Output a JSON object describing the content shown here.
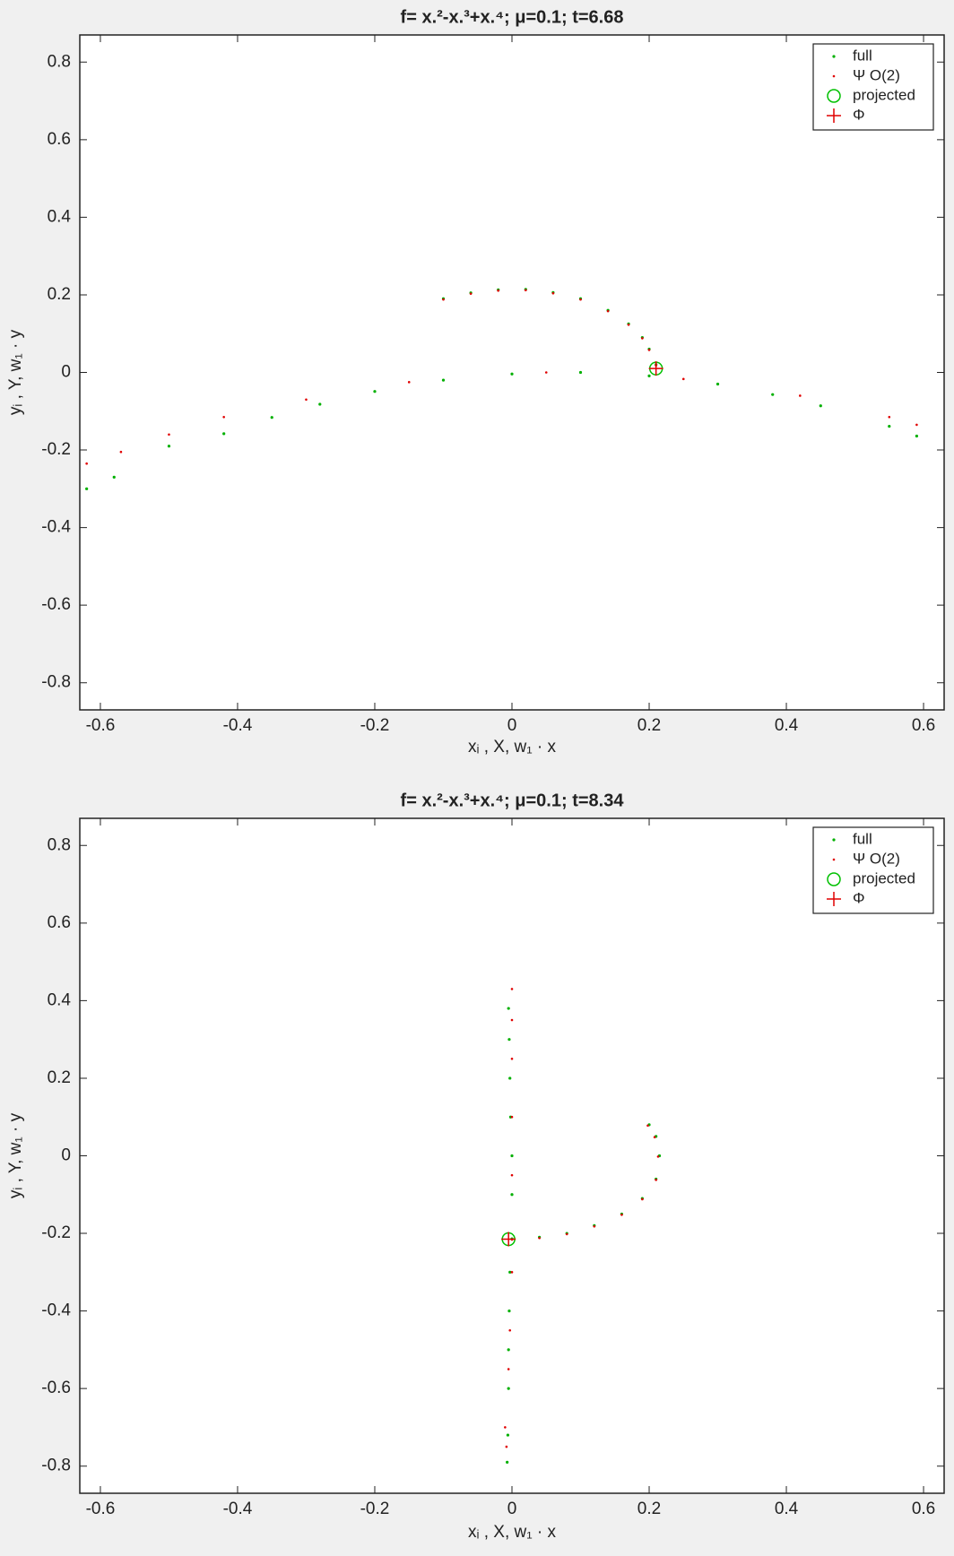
{
  "chart_data": [
    {
      "type": "scatter",
      "title": "f= x.²-x.³+x.⁴;  μ=0.1; t=6.68",
      "xlabel": "xᵢ , X, w₁ · x",
      "ylabel": "yᵢ , Y, w₁ · y",
      "xlim": [
        -0.63,
        0.63
      ],
      "xticks": [
        -0.6,
        -0.4,
        -0.2,
        0,
        0.2,
        0.4,
        0.6
      ],
      "ylim": [
        -0.87,
        0.87
      ],
      "yticks": [
        -0.8,
        -0.6,
        -0.4,
        -0.2,
        0,
        0.2,
        0.4,
        0.6,
        0.8
      ],
      "legend": "upper right",
      "series": [
        {
          "name": "full",
          "color": "#00b000",
          "marker": "point",
          "x": [
            -0.1,
            -0.06,
            -0.02,
            0.02,
            0.06,
            0.1,
            0.14,
            0.17,
            0.19,
            0.2,
            0.21,
            -0.62,
            -0.58,
            -0.5,
            -0.42,
            -0.35,
            -0.28,
            -0.2,
            -0.1,
            0,
            0.1,
            0.2,
            0.3,
            0.38,
            0.45,
            0.55,
            0.59
          ],
          "values": [
            0.19,
            0.205,
            0.213,
            0.214,
            0.206,
            0.19,
            0.16,
            0.125,
            0.09,
            0.06,
            0.02,
            -0.3,
            -0.27,
            -0.19,
            -0.158,
            -0.116,
            -0.082,
            -0.049,
            -0.02,
            -0.004,
            0,
            -0.009,
            -0.03,
            -0.057,
            -0.086,
            -0.139,
            -0.164
          ]
        },
        {
          "name": "Ψ O(2)",
          "color": "#e00000",
          "marker": "dot",
          "x": [
            -0.1,
            -0.06,
            -0.02,
            0.02,
            0.06,
            0.1,
            0.14,
            0.17,
            0.19,
            0.2,
            0.21,
            -0.62,
            -0.57,
            -0.5,
            -0.42,
            -0.3,
            -0.15,
            0.05,
            0.25,
            0.42,
            0.55,
            0.59
          ],
          "values": [
            0.188,
            0.203,
            0.211,
            0.212,
            0.204,
            0.188,
            0.158,
            0.123,
            0.088,
            0.058,
            0.018,
            -0.235,
            -0.205,
            -0.16,
            -0.115,
            -0.07,
            -0.025,
            0,
            -0.017,
            -0.06,
            -0.115,
            -0.135
          ]
        },
        {
          "name": "projected",
          "color": "#00c000",
          "marker": "circle",
          "x": [
            0.21
          ],
          "values": [
            0.01
          ]
        },
        {
          "name": "Φ",
          "color": "#e00000",
          "marker": "plus",
          "x": [
            0.21
          ],
          "values": [
            0.01
          ]
        }
      ]
    },
    {
      "type": "scatter",
      "title": "f= x.²-x.³+x.⁴;  μ=0.1; t=8.34",
      "xlabel": "xᵢ , X, w₁ · x",
      "ylabel": "yᵢ , Y, w₁ · y",
      "xlim": [
        -0.63,
        0.63
      ],
      "xticks": [
        -0.6,
        -0.4,
        -0.2,
        0,
        0.2,
        0.4,
        0.6
      ],
      "ylim": [
        -0.87,
        0.87
      ],
      "yticks": [
        -0.8,
        -0.6,
        -0.4,
        -0.2,
        0,
        0.2,
        0.4,
        0.6,
        0.8
      ],
      "legend": "upper right",
      "series": [
        {
          "name": "full",
          "color": "#00b000",
          "marker": "point",
          "x": [
            0,
            0.04,
            0.08,
            0.12,
            0.16,
            0.19,
            0.21,
            0.215,
            0.21,
            0.2,
            -0.005,
            -0.004,
            -0.003,
            -0.002,
            0,
            0,
            -0.003,
            -0.004,
            -0.005,
            -0.005,
            -0.006,
            -0.007
          ],
          "values": [
            -0.214,
            -0.21,
            -0.2,
            -0.18,
            -0.15,
            -0.11,
            -0.06,
            0,
            0.05,
            0.08,
            0.38,
            0.3,
            0.2,
            0.1,
            0,
            -0.1,
            -0.3,
            -0.4,
            -0.5,
            -0.6,
            -0.72,
            -0.79
          ]
        },
        {
          "name": "Ψ O(2)",
          "color": "#e00000",
          "marker": "dot",
          "x": [
            0,
            0.04,
            0.08,
            0.12,
            0.16,
            0.19,
            0.21,
            0.213,
            0.208,
            0.198,
            0,
            0,
            0,
            0,
            0,
            0,
            -0.003,
            -0.005,
            -0.01,
            -0.008
          ],
          "values": [
            -0.216,
            -0.212,
            -0.202,
            -0.182,
            -0.152,
            -0.112,
            -0.062,
            -0.002,
            0.048,
            0.078,
            0.43,
            0.35,
            0.25,
            0.1,
            -0.05,
            -0.3,
            -0.45,
            -0.55,
            -0.7,
            -0.75
          ]
        },
        {
          "name": "projected",
          "color": "#00c000",
          "marker": "circle",
          "x": [
            -0.005
          ],
          "values": [
            -0.215
          ]
        },
        {
          "name": "Φ",
          "color": "#e00000",
          "marker": "plus",
          "x": [
            -0.005
          ],
          "values": [
            -0.215
          ]
        }
      ]
    }
  ]
}
